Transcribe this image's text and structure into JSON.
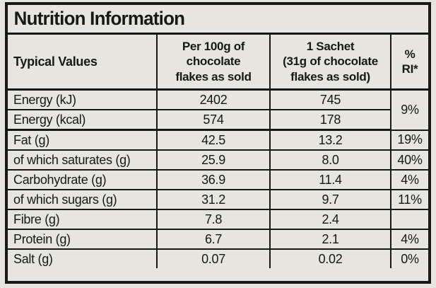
{
  "title": "Nutrition Information",
  "colors": {
    "paper_background": "#e6e5df",
    "ink": "#181818"
  },
  "table": {
    "header": {
      "col1": "Typical Values",
      "col2": "Per 100g of\nchocolate\nflakes as sold",
      "col3": "1 Sachet\n(31g of chocolate\nflakes as sold)",
      "col4": "%\nRI*"
    },
    "rows": [
      {
        "label": "Energy (kJ)",
        "per100g": "2402",
        "sachet": "745",
        "ri": "9%"
      },
      {
        "label": "Energy (kcal)",
        "per100g": "574",
        "sachet": "178",
        "ri": ""
      },
      {
        "label": "Fat (g)",
        "per100g": "42.5",
        "sachet": "13.2",
        "ri": "19%"
      },
      {
        "label": "of which saturates (g)",
        "per100g": "25.9",
        "sachet": "8.0",
        "ri": "40%"
      },
      {
        "label": "Carbohydrate (g)",
        "per100g": "36.9",
        "sachet": "11.4",
        "ri": "4%"
      },
      {
        "label": "of which sugars (g)",
        "per100g": "31.2",
        "sachet": "9.7",
        "ri": "11%"
      },
      {
        "label": "Fibre (g)",
        "per100g": "7.8",
        "sachet": "2.4",
        "ri": ""
      },
      {
        "label": "Protein (g)",
        "per100g": "6.7",
        "sachet": "2.1",
        "ri": "4%"
      },
      {
        "label": "Salt (g)",
        "per100g": "0.07",
        "sachet": "0.02",
        "ri": "0%"
      }
    ]
  }
}
